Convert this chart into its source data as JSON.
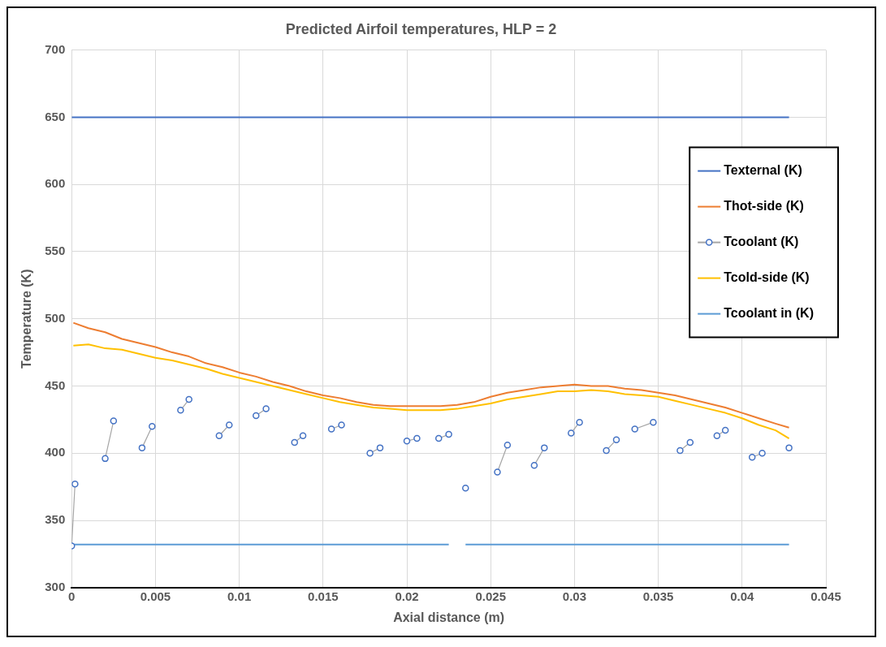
{
  "chart_data": {
    "type": "line",
    "title": "Predicted Airfoil temperatures, HLP = 2",
    "xlabel": "Axial distance (m)",
    "ylabel": "Temperature (K)",
    "xlim": [
      0,
      0.045
    ],
    "xticks": [
      0,
      0.005,
      0.01,
      0.015,
      0.02,
      0.025,
      0.03,
      0.035,
      0.04,
      0.045
    ],
    "ylim": [
      300,
      700
    ],
    "yticks": [
      300,
      350,
      400,
      450,
      500,
      550,
      600,
      650,
      700
    ],
    "grid": true,
    "legend": "top right",
    "series": [
      {
        "name": "Texternal (K)",
        "color": "#4472c4",
        "x": [
          0,
          0.0428
        ],
        "values": [
          650,
          650
        ]
      },
      {
        "name": "Thot-side (K)",
        "color": "#ed7d31",
        "x": [
          0.0001,
          0.001,
          0.002,
          0.003,
          0.004,
          0.005,
          0.006,
          0.007,
          0.008,
          0.009,
          0.01,
          0.011,
          0.012,
          0.013,
          0.014,
          0.015,
          0.016,
          0.017,
          0.018,
          0.019,
          0.02,
          0.021,
          0.022,
          0.023,
          0.024,
          0.025,
          0.026,
          0.027,
          0.028,
          0.029,
          0.03,
          0.031,
          0.032,
          0.033,
          0.034,
          0.035,
          0.036,
          0.037,
          0.038,
          0.039,
          0.04,
          0.041,
          0.042,
          0.0428
        ],
        "values": [
          497,
          493,
          490,
          485,
          482,
          479,
          475,
          472,
          467,
          464,
          460,
          457,
          453,
          450,
          446,
          443,
          441,
          438,
          436,
          435,
          435,
          435,
          435,
          436,
          438,
          442,
          445,
          447,
          449,
          450,
          451,
          450,
          450,
          448,
          447,
          445,
          443,
          440,
          437,
          434,
          430,
          426,
          422,
          419
        ]
      },
      {
        "name": "Tcoolant (K)",
        "color": "#4472c4",
        "marker": "circle",
        "x": [
          0,
          0.0002,
          0.001,
          0.002,
          0.0025,
          0.0033,
          0.0042,
          0.0048,
          0.0056,
          0.0065,
          0.007,
          0.0079,
          0.0088,
          0.0094,
          0.0102,
          0.011,
          0.0116,
          0.0125,
          0.0133,
          0.0138,
          0.0146,
          0.0155,
          0.0161,
          0.017,
          0.0178,
          0.0184,
          0.0192,
          0.02,
          0.0206,
          0.0212,
          0.0219,
          0.0225,
          0.023,
          0.0235,
          0.0245,
          0.0254,
          0.026,
          0.0268,
          0.0276,
          0.0282,
          0.029,
          0.0298,
          0.0303,
          0.0311,
          0.0319,
          0.0325,
          0.033,
          0.0336,
          0.0347,
          0.0355,
          0.0363,
          0.0369,
          0.0377,
          0.0385,
          0.039,
          0.0398,
          0.0406,
          0.0412,
          0.042,
          0.0428
        ],
        "values": [
          331,
          377,
          null,
          396,
          424,
          null,
          404,
          420,
          null,
          432,
          440,
          null,
          413,
          421,
          null,
          428,
          433,
          null,
          408,
          413,
          null,
          418,
          421,
          null,
          400,
          404,
          null,
          409,
          411,
          null,
          411,
          414,
          null,
          374,
          null,
          386,
          406,
          null,
          391,
          404,
          null,
          415,
          423,
          null,
          402,
          410,
          null,
          418,
          423,
          null,
          402,
          408,
          null,
          413,
          417,
          null,
          397,
          400,
          null,
          404
        ]
      },
      {
        "name": "Tcold-side (K)",
        "color": "#ffc000",
        "x": [
          0.0001,
          0.001,
          0.002,
          0.003,
          0.004,
          0.005,
          0.006,
          0.007,
          0.008,
          0.009,
          0.01,
          0.011,
          0.012,
          0.013,
          0.014,
          0.015,
          0.016,
          0.017,
          0.018,
          0.019,
          0.02,
          0.021,
          0.022,
          0.023,
          0.024,
          0.025,
          0.026,
          0.027,
          0.028,
          0.029,
          0.03,
          0.031,
          0.032,
          0.033,
          0.034,
          0.035,
          0.036,
          0.037,
          0.038,
          0.039,
          0.04,
          0.041,
          0.042,
          0.0428
        ],
        "values": [
          480,
          481,
          478,
          477,
          474,
          471,
          469,
          466,
          463,
          459,
          456,
          453,
          450,
          447,
          444,
          441,
          438,
          436,
          434,
          433,
          432,
          432,
          432,
          433,
          435,
          437,
          440,
          442,
          444,
          446,
          446,
          447,
          446,
          444,
          443,
          442,
          439,
          436,
          433,
          430,
          426,
          421,
          417,
          411
        ]
      },
      {
        "name": "Tcoolant in (K)",
        "color": "#5b9bd5",
        "x": [
          0,
          0.0225,
          0.023,
          0.0235,
          0.0428
        ],
        "values": [
          332,
          332,
          null,
          332,
          332
        ]
      }
    ]
  }
}
